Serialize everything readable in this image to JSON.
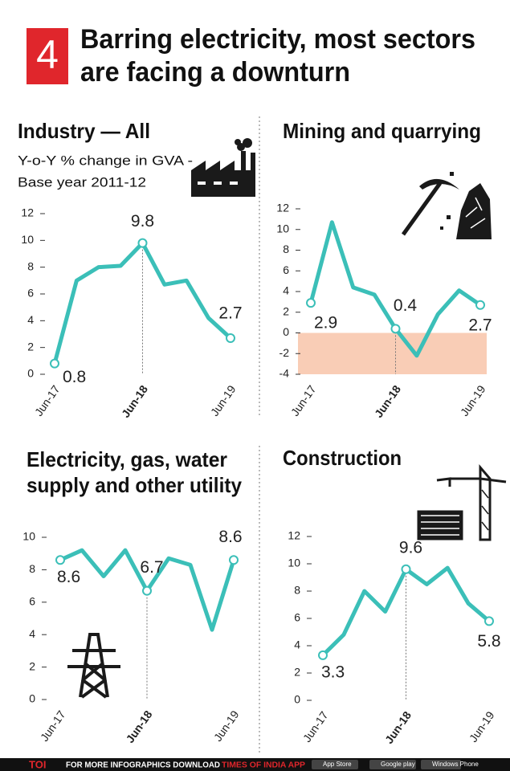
{
  "header": {
    "number": "4",
    "title": [
      "Barring electricity, most sectors",
      "are facing a downturn"
    ]
  },
  "chart_data": [
    {
      "type": "line",
      "title": [
        "Industry — All"
      ],
      "subtitle": [
        "Y-o-Y % change in GVA -",
        "Base year 2011-12"
      ],
      "categories": [
        "Jun-17",
        null,
        null,
        null,
        "Jun-18",
        null,
        null,
        null,
        "Jun-19"
      ],
      "values": [
        0.8,
        7.0,
        8.0,
        8.1,
        9.8,
        6.7,
        7.0,
        4.2,
        2.7
      ],
      "color": "#3bbfb8",
      "ylim": [
        0,
        12
      ],
      "yticks": [
        0,
        2,
        4,
        6,
        8,
        10,
        12
      ]
    },
    {
      "type": "line",
      "title": [
        "Mining and quarrying"
      ],
      "categories": [
        "Jun-17",
        null,
        null,
        null,
        "Jun-18",
        null,
        null,
        null,
        "Jun-19"
      ],
      "values": [
        2.9,
        10.7,
        4.4,
        3.7,
        0.4,
        -2.2,
        1.8,
        4.1,
        2.7
      ],
      "color": "#3bbfb8",
      "negative_fill": "#f9cdb6",
      "ylim": [
        -4,
        12
      ],
      "yticks": [
        -4,
        -2,
        0,
        2,
        4,
        6,
        8,
        10,
        12
      ]
    },
    {
      "type": "line",
      "title": [
        "Electricity, gas, water",
        "supply and other utility"
      ],
      "categories": [
        "Jun-17",
        null,
        null,
        null,
        "Jun-18",
        null,
        null,
        null,
        "Jun-19"
      ],
      "values": [
        8.6,
        9.2,
        7.6,
        9.2,
        6.7,
        8.7,
        8.3,
        4.3,
        8.6
      ],
      "color": "#3bbfb8",
      "ylim": [
        0,
        10
      ],
      "yticks": [
        0,
        2,
        4,
        6,
        8,
        10
      ]
    },
    {
      "type": "line",
      "title": [
        "Construction"
      ],
      "categories": [
        "Jun-17",
        null,
        null,
        null,
        "Jun-18",
        null,
        null,
        null,
        "Jun-19"
      ],
      "values": [
        3.3,
        4.8,
        8.0,
        6.5,
        9.6,
        8.5,
        9.7,
        7.1,
        5.8
      ],
      "color": "#3bbfb8",
      "ylim": [
        0,
        12
      ],
      "yticks": [
        0,
        2,
        4,
        6,
        8,
        10,
        12
      ]
    }
  ],
  "footer": {
    "brand": "TOI",
    "text": "FOR MORE INFOGRAPHICS DOWNLOAD",
    "app": "TIMES OF INDIA APP",
    "stores": [
      "App Store",
      "Google play",
      "Windows Phone"
    ]
  }
}
